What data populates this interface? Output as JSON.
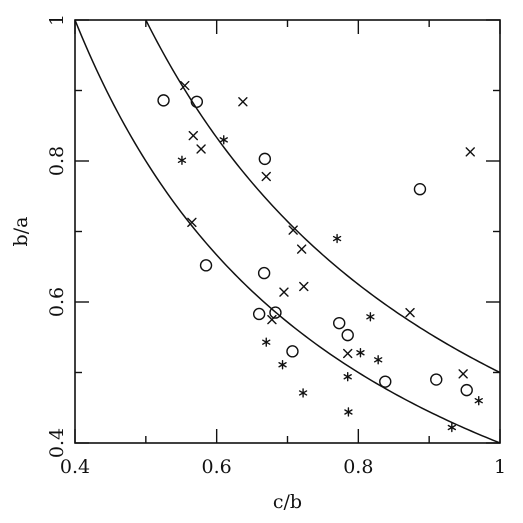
{
  "chart_data": {
    "type": "scatter",
    "xlabel": "c/b",
    "ylabel": "b/a",
    "xlim": [
      0.4,
      1.0
    ],
    "ylim": [
      0.4,
      1.0
    ],
    "xticks": [
      0.4,
      0.6,
      0.8,
      1.0
    ],
    "yticks": [
      0.4,
      0.6,
      0.8,
      1.0
    ],
    "xtick_labels": [
      "0.4",
      "0.6",
      "0.8",
      "1"
    ],
    "ytick_labels": [
      "0.4",
      "0.6",
      "0.8",
      "1"
    ],
    "grid": false,
    "legend": "none",
    "curves": [
      {
        "relation": "y = 0.4 / x",
        "x_range": [
          0.4,
          1.0
        ]
      },
      {
        "relation": "y = 0.5 / x",
        "x_range": [
          0.5,
          1.0
        ]
      }
    ],
    "series": [
      {
        "marker": "circle",
        "points": [
          [
            0.525,
            0.886
          ],
          [
            0.572,
            0.884
          ],
          [
            0.585,
            0.652
          ],
          [
            0.668,
            0.803
          ],
          [
            0.667,
            0.641
          ],
          [
            0.66,
            0.583
          ],
          [
            0.683,
            0.585
          ],
          [
            0.707,
            0.53
          ],
          [
            0.773,
            0.57
          ],
          [
            0.785,
            0.553
          ],
          [
            0.838,
            0.487
          ],
          [
            0.887,
            0.76
          ],
          [
            0.91,
            0.49
          ],
          [
            0.953,
            0.475
          ]
        ]
      },
      {
        "marker": "cross",
        "points": [
          [
            0.555,
            0.907
          ],
          [
            0.567,
            0.836
          ],
          [
            0.578,
            0.817
          ],
          [
            0.637,
            0.884
          ],
          [
            0.67,
            0.778
          ],
          [
            0.565,
            0.713
          ],
          [
            0.708,
            0.702
          ],
          [
            0.72,
            0.675
          ],
          [
            0.723,
            0.622
          ],
          [
            0.695,
            0.614
          ],
          [
            0.678,
            0.575
          ],
          [
            0.785,
            0.527
          ],
          [
            0.873,
            0.585
          ],
          [
            0.948,
            0.498
          ],
          [
            0.958,
            0.813
          ]
        ]
      },
      {
        "marker": "asterisk",
        "points": [
          [
            0.551,
            0.801
          ],
          [
            0.61,
            0.83
          ],
          [
            0.67,
            0.543
          ],
          [
            0.693,
            0.511
          ],
          [
            0.722,
            0.471
          ],
          [
            0.77,
            0.69
          ],
          [
            0.785,
            0.494
          ],
          [
            0.786,
            0.444
          ],
          [
            0.803,
            0.528
          ],
          [
            0.817,
            0.579
          ],
          [
            0.828,
            0.518
          ],
          [
            0.932,
            0.422
          ],
          [
            0.97,
            0.46
          ]
        ]
      }
    ]
  }
}
